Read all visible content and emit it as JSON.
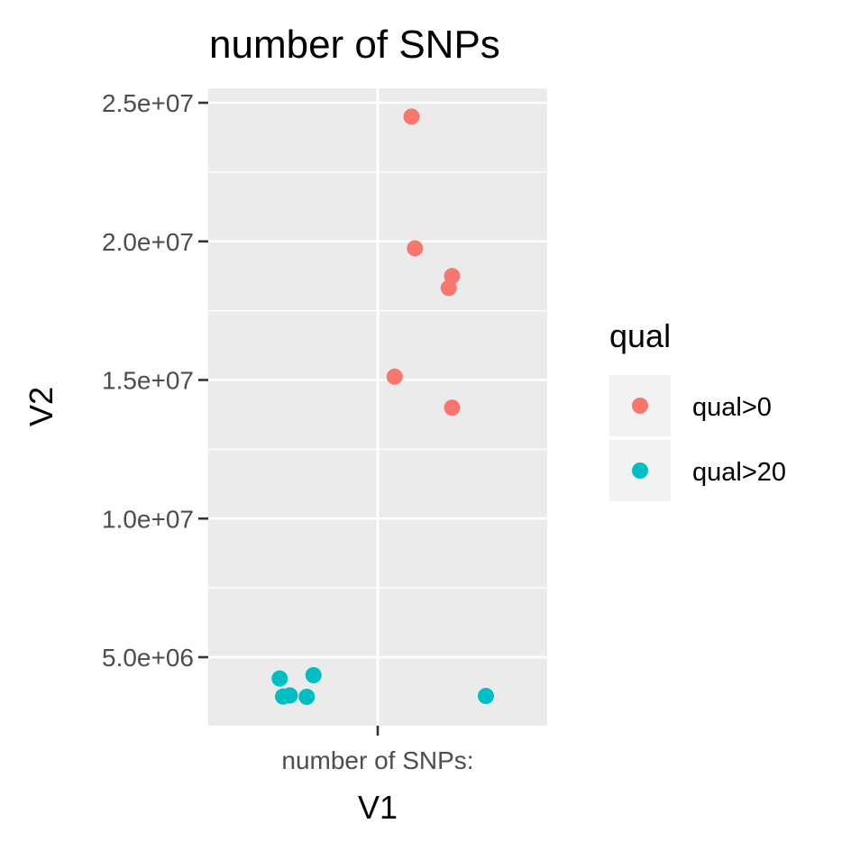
{
  "chart_data": {
    "type": "scatter",
    "title": "number of SNPs",
    "xlabel": "V1",
    "ylabel": "V2",
    "x_categories": [
      "number of SNPs:"
    ],
    "y_ticks": [
      {
        "value": 5000000,
        "label": "5.0e+06"
      },
      {
        "value": 10000000,
        "label": "1.0e+07"
      },
      {
        "value": 15000000,
        "label": "1.5e+07"
      },
      {
        "value": 20000000,
        "label": "2.0e+07"
      },
      {
        "value": 25000000,
        "label": "2.5e+07"
      }
    ],
    "ylim": [
      2400000,
      25500000
    ],
    "grid": true,
    "legend": {
      "title": "qual",
      "placement": "right"
    },
    "jitter_note_unused": "",
    "series": [
      {
        "name": "qual>0",
        "color": "#F8766D",
        "points": [
          {
            "x": "number of SNPs:",
            "jitter": 0.1,
            "y": 24500000
          },
          {
            "x": "number of SNPs:",
            "jitter": 0.11,
            "y": 19750000
          },
          {
            "x": "number of SNPs:",
            "jitter": 0.22,
            "y": 18750000
          },
          {
            "x": "number of SNPs:",
            "jitter": 0.21,
            "y": 18320000
          },
          {
            "x": "number of SNPs:",
            "jitter": 0.05,
            "y": 15120000
          },
          {
            "x": "number of SNPs:",
            "jitter": 0.22,
            "y": 14000000
          }
        ]
      },
      {
        "name": "qual>20",
        "color": "#00BFC4",
        "points": [
          {
            "x": "number of SNPs:",
            "jitter": -0.29,
            "y": 4230000
          },
          {
            "x": "number of SNPs:",
            "jitter": -0.19,
            "y": 4350000
          },
          {
            "x": "number of SNPs:",
            "jitter": -0.28,
            "y": 3580000
          },
          {
            "x": "number of SNPs:",
            "jitter": -0.26,
            "y": 3620000
          },
          {
            "x": "number of SNPs:",
            "jitter": -0.21,
            "y": 3570000
          },
          {
            "x": "number of SNPs:",
            "jitter": 0.32,
            "y": 3600000
          }
        ]
      }
    ]
  }
}
